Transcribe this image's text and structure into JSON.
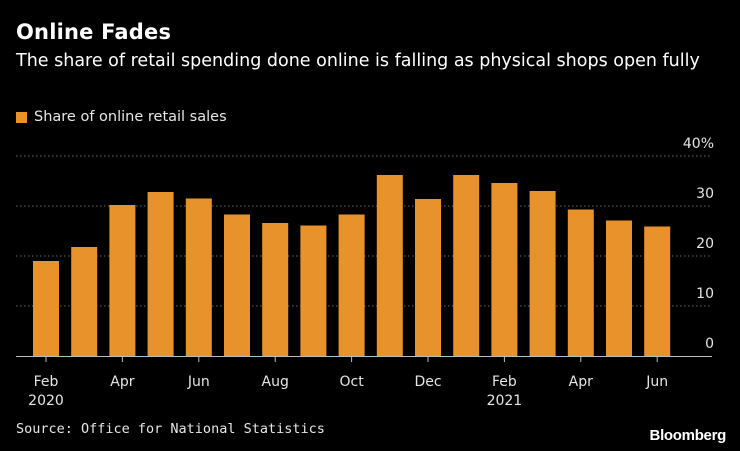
{
  "colors": {
    "bar": "#e8922b",
    "background": "#000000",
    "grid": "#6a6a6a"
  },
  "chart_data": {
    "type": "bar",
    "title": "Online Fades",
    "subtitle": "The share of retail spending done online is falling as physical shops open fully",
    "legend": "Share of online retail sales",
    "legend_placement": "top-left",
    "categories": [
      "Feb 2020",
      "Mar 2020",
      "Apr 2020",
      "May 2020",
      "Jun 2020",
      "Jul 2020",
      "Aug 2020",
      "Sep 2020",
      "Oct 2020",
      "Nov 2020",
      "Dec 2020",
      "Jan 2021",
      "Feb 2021",
      "Mar 2021",
      "Apr 2021",
      "May 2021",
      "Jun 2021"
    ],
    "series": [
      {
        "name": "Share of online retail sales",
        "values": [
          19.0,
          21.8,
          30.2,
          32.8,
          31.5,
          28.3,
          26.6,
          26.1,
          28.3,
          36.2,
          31.4,
          36.2,
          34.6,
          33.0,
          29.3,
          27.1,
          25.9
        ]
      }
    ],
    "ylim": [
      0,
      40
    ],
    "yticks": [
      "0",
      "10",
      "20",
      "30",
      "40%"
    ],
    "xtick_labels": [
      {
        "index": 0,
        "text": "Feb",
        "year": "2020"
      },
      {
        "index": 2,
        "text": "Apr"
      },
      {
        "index": 4,
        "text": "Jun"
      },
      {
        "index": 6,
        "text": "Aug"
      },
      {
        "index": 8,
        "text": "Oct"
      },
      {
        "index": 10,
        "text": "Dec"
      },
      {
        "index": 12,
        "text": "Feb",
        "year": "2021"
      },
      {
        "index": 14,
        "text": "Apr"
      },
      {
        "index": 16,
        "text": "Jun"
      }
    ],
    "grid": true,
    "xlabel": "",
    "ylabel": ""
  },
  "footer": {
    "source": "Source: Office for National Statistics",
    "brand": "Bloomberg"
  }
}
